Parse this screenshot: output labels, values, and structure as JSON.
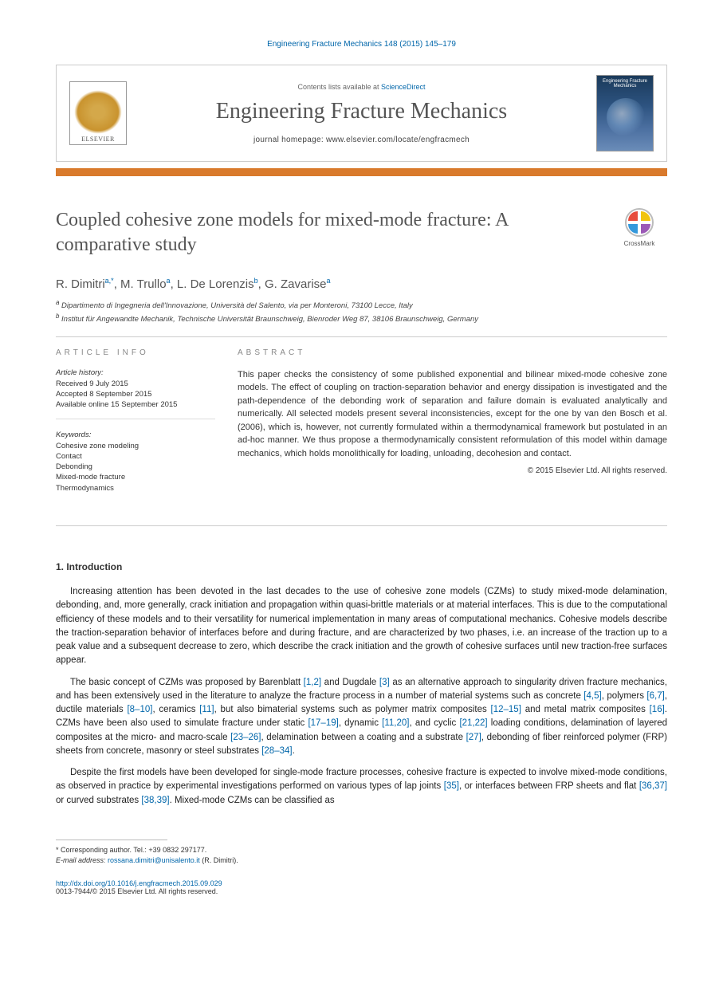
{
  "journal_ref": "Engineering Fracture Mechanics 148 (2015) 145–179",
  "header": {
    "contents_line_a": "Contents lists available at ",
    "contents_line_b": "ScienceDirect",
    "journal_title": "Engineering Fracture Mechanics",
    "homepage": "journal homepage: www.elsevier.com/locate/engfracmech",
    "elsevier": "ELSEVIER",
    "cover_title": "Engineering Fracture Mechanics"
  },
  "paper": {
    "title": "Coupled cohesive zone models for mixed-mode fracture: A comparative study",
    "crossmark": "CrossMark"
  },
  "authors": {
    "a1": "R. Dimitri",
    "a1_sup": "a,",
    "a1_corr": "*",
    "a2": "M. Trullo",
    "a2_sup": "a",
    "a3": "L. De Lorenzis",
    "a3_sup": "b",
    "a4": "G. Zavarise",
    "a4_sup": "a"
  },
  "affil": {
    "a": "Dipartimento di Ingegneria dell'Innovazione, Università del Salento, via per Monteroni, 73100 Lecce, Italy",
    "b": "Institut für Angewandte Mechanik, Technische Universität Braunschweig, Bienroder Weg 87, 38106 Braunschweig, Germany"
  },
  "article_info": {
    "head": "ARTICLE INFO",
    "history_label": "Article history:",
    "received": "Received 9 July 2015",
    "accepted": "Accepted 8 September 2015",
    "online": "Available online 15 September 2015",
    "keywords_label": "Keywords:",
    "kw1": "Cohesive zone modeling",
    "kw2": "Contact",
    "kw3": "Debonding",
    "kw4": "Mixed-mode fracture",
    "kw5": "Thermodynamics"
  },
  "abstract": {
    "head": "ABSTRACT",
    "text": "This paper checks the consistency of some published exponential and bilinear mixed-mode cohesive zone models. The effect of coupling on traction-separation behavior and energy dissipation is investigated and the path-dependence of the debonding work of separation and failure domain is evaluated analytically and numerically. All selected models present several inconsistencies, except for the one by van den Bosch et al. (2006), which is, however, not currently formulated within a thermodynamical framework but postulated in an ad-hoc manner. We thus propose a thermodynamically consistent reformulation of this model within damage mechanics, which holds monolithically for loading, unloading, decohesion and contact.",
    "copyright": "© 2015 Elsevier Ltd. All rights reserved."
  },
  "intro": {
    "head": "1. Introduction",
    "p1": "Increasing attention has been devoted in the last decades to the use of cohesive zone models (CZMs) to study mixed-mode delamination, debonding, and, more generally, crack initiation and propagation within quasi-brittle materials or at material interfaces. This is due to the computational efficiency of these models and to their versatility for numerical implementation in many areas of computational mechanics. Cohesive models describe the traction-separation behavior of interfaces before and during fracture, and are characterized by two phases, i.e. an increase of the traction up to a peak value and a subsequent decrease to zero, which describe the crack initiation and the growth of cohesive surfaces until new traction-free surfaces appear.",
    "p2a": "The basic concept of CZMs was proposed by Barenblatt ",
    "r1": "[1,2]",
    "p2b": " and Dugdale ",
    "r2": "[3]",
    "p2c": " as an alternative approach to singularity driven fracture mechanics, and has been extensively used in the literature to analyze the fracture process in a number of material systems such as concrete ",
    "r3": "[4,5]",
    "p2d": ", polymers ",
    "r4": "[6,7]",
    "p2e": ", ductile materials ",
    "r5": "[8–10]",
    "p2f": ", ceramics ",
    "r6": "[11]",
    "p2g": ", but also bimaterial systems such as polymer matrix composites ",
    "r7": "[12–15]",
    "p2h": " and metal matrix composites ",
    "r8": "[16]",
    "p2i": ". CZMs have been also used to simulate fracture under static ",
    "r9": "[17–19]",
    "p2j": ", dynamic ",
    "r10": "[11,20]",
    "p2k": ", and cyclic ",
    "r11": "[21,22]",
    "p2l": " loading conditions, delamination of layered composites at the micro- and macro-scale ",
    "r12": "[23–26]",
    "p2m": ", delamination between a coating and a substrate ",
    "r13": "[27]",
    "p2n": ", debonding of fiber reinforced polymer (FRP) sheets from concrete, masonry or steel substrates ",
    "r14": "[28–34]",
    "p2o": ".",
    "p3a": "Despite the first models have been developed for single-mode fracture processes, cohesive fracture is expected to involve mixed-mode conditions, as observed in practice by experimental investigations performed on various types of lap joints ",
    "r15": "[35]",
    "p3b": ", or interfaces between FRP sheets and flat ",
    "r16": "[36,37]",
    "p3c": " or curved substrates ",
    "r17": "[38,39]",
    "p3d": ". Mixed-mode CZMs can be classified as"
  },
  "footnote": {
    "corr": "* Corresponding author. Tel.: +39 0832 297177.",
    "email_label": "E-mail address: ",
    "email": "rossana.dimitri@unisalento.it",
    "email_after": " (R. Dimitri)."
  },
  "doi": {
    "link": "http://dx.doi.org/10.1016/j.engfracmech.2015.09.029",
    "issn": "0013-7944/© 2015 Elsevier Ltd. All rights reserved."
  },
  "colors": {
    "accent": "#d97a2c",
    "link": "#0066aa",
    "text": "#333333"
  }
}
